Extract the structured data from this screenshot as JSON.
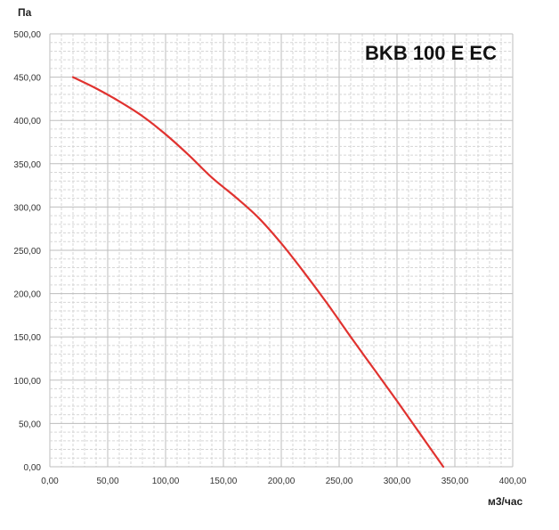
{
  "chart_data": {
    "type": "line",
    "title": "BKB 100 E EC",
    "xlabel": "м3/час",
    "ylabel": "Па",
    "xlim": [
      0,
      400
    ],
    "ylim": [
      0,
      500
    ],
    "grid": true,
    "x_ticks": [
      "0,00",
      "50,00",
      "100,00",
      "150,00",
      "200,00",
      "250,00",
      "300,00",
      "350,00",
      "400,00"
    ],
    "y_ticks": [
      "0,00",
      "50,00",
      "100,00",
      "150,00",
      "200,00",
      "250,00",
      "300,00",
      "350,00",
      "400,00",
      "450,00",
      "500,00"
    ],
    "series": [
      {
        "color": "#e0322f",
        "x": [
          20,
          40,
          60,
          80,
          100,
          120,
          140,
          160,
          180,
          200,
          220,
          240,
          260,
          280,
          300,
          320,
          340
        ],
        "y": [
          450,
          437,
          422,
          405,
          384,
          360,
          334,
          312,
          288,
          258,
          224,
          188,
          150,
          113,
          76,
          38,
          0
        ]
      }
    ]
  }
}
